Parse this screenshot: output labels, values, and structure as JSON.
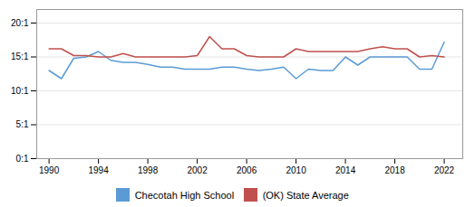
{
  "chart_data": {
    "type": "line",
    "x": [
      1990,
      1991,
      1992,
      1993,
      1994,
      1995,
      1996,
      1997,
      1998,
      1999,
      2000,
      2001,
      2002,
      2003,
      2004,
      2005,
      2006,
      2007,
      2008,
      2009,
      2010,
      2011,
      2012,
      2013,
      2014,
      2015,
      2016,
      2017,
      2018,
      2019,
      2020,
      2021,
      2022
    ],
    "series": [
      {
        "name": "Checotah High School",
        "color": "#5b9bd5",
        "values": [
          13.0,
          11.8,
          14.8,
          15.0,
          15.8,
          14.5,
          14.2,
          14.2,
          13.9,
          13.5,
          13.5,
          13.2,
          13.2,
          13.2,
          13.5,
          13.5,
          13.2,
          13.0,
          13.2,
          13.5,
          11.8,
          13.2,
          13.0,
          13.0,
          15.0,
          13.8,
          15.0,
          15.0,
          15.0,
          15.0,
          13.2,
          13.2,
          17.2
        ]
      },
      {
        "name": "(OK) State Average",
        "color": "#c0504d",
        "values": [
          16.2,
          16.2,
          15.2,
          15.2,
          15.0,
          15.0,
          15.5,
          15.0,
          15.0,
          15.0,
          15.0,
          15.0,
          15.2,
          18.0,
          16.2,
          16.2,
          15.2,
          15.0,
          15.0,
          15.0,
          16.2,
          15.8,
          15.8,
          15.8,
          15.8,
          15.8,
          16.2,
          16.5,
          16.2,
          16.2,
          15.0,
          15.2,
          15.0
        ]
      }
    ],
    "xlim": [
      1989,
      2023.5
    ],
    "xticks": [
      1990,
      1994,
      1998,
      2002,
      2006,
      2010,
      2014,
      2018,
      2022
    ],
    "ylim": [
      0,
      22
    ],
    "yticks": [
      {
        "value": 0,
        "label": "0:1"
      },
      {
        "value": 5,
        "label": "5:1"
      },
      {
        "value": 10,
        "label": "10:1"
      },
      {
        "value": 15,
        "label": "15:1"
      },
      {
        "value": 20,
        "label": "20:1"
      }
    ],
    "grid": true,
    "legend": "bottom"
  }
}
